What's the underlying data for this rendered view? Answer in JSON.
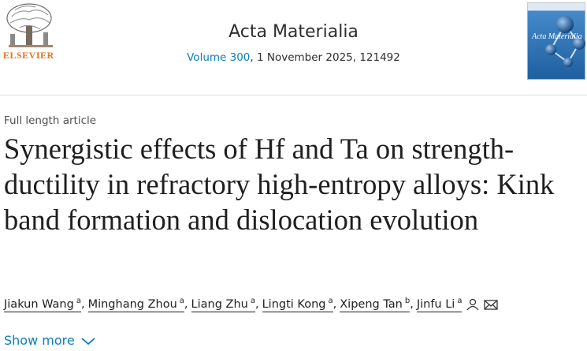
{
  "header": {
    "publisher": "ELSEVIER",
    "journal": "Acta Materialia",
    "volume": "Volume 300",
    "issue_info": ", 1 November 2025, 121492",
    "cover": {
      "title": "Acta Materialia"
    }
  },
  "article": {
    "type": "Full length article",
    "title": "Synergistic effects of Hf and Ta on strength-ductility in refractory high-entropy alloys: Kink band formation and dislocation evolution",
    "author_separator": ",",
    "authors": [
      {
        "name": "Jiakun Wang",
        "affiliation": "a"
      },
      {
        "name": "Minghang Zhou",
        "affiliation": "a"
      },
      {
        "name": "Liang Zhu",
        "affiliation": "a"
      },
      {
        "name": "Lingti Kong",
        "affiliation": "a"
      },
      {
        "name": "Xipeng Tan",
        "affiliation": "b"
      },
      {
        "name": "Jinfu Li",
        "affiliation": "a"
      }
    ],
    "show_more": "Show more"
  }
}
